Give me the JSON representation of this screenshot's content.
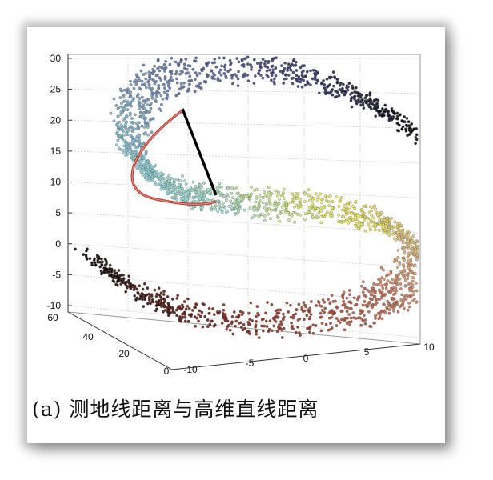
{
  "chart_data": {
    "type": "scatter",
    "variant": "3d swiss-roll point cloud",
    "title": "",
    "caption": "(a) 测地线距离与高维直线距离",
    "z_axis": {
      "ticks": [
        "30",
        "25",
        "20",
        "15",
        "10",
        "5",
        "0",
        "-5",
        "-10"
      ],
      "range": [
        -10,
        30
      ]
    },
    "x_axis": {
      "ticks": [
        "-10",
        "-5",
        "0",
        "5",
        "10"
      ],
      "range": [
        -10,
        10
      ]
    },
    "y_axis": {
      "ticks": [
        "60",
        "40",
        "20",
        "0"
      ],
      "range": [
        0,
        60
      ]
    },
    "grid": true,
    "series": [
      {
        "kind": "geodesic-path",
        "color": "#c0392b"
      },
      {
        "kind": "straight-line",
        "color": "#000000"
      }
    ],
    "colormap": [
      "#000000",
      "#7a1f14",
      "#c0624a",
      "#e8c48a",
      "#f2ef4c",
      "#9fe0cf",
      "#8fd6e0",
      "#6e8fb8",
      "#3b3a7a",
      "#000000"
    ]
  }
}
